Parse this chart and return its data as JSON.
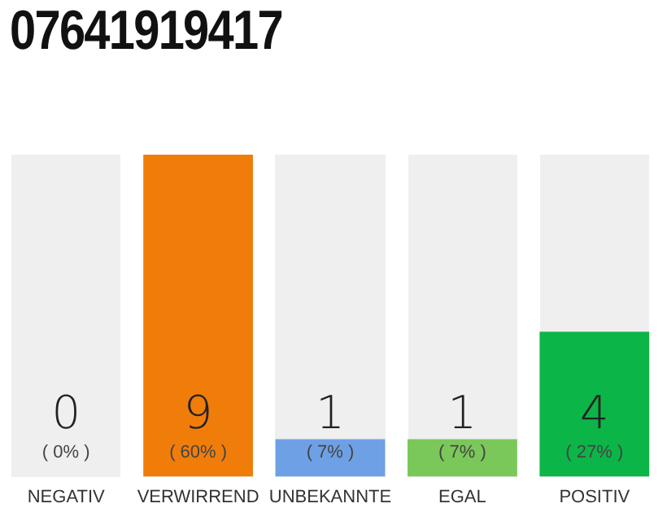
{
  "chart_data": {
    "type": "bar",
    "title": "07641919417",
    "categories": [
      "NEGATIV",
      "VERWIRREND",
      "UNBEKANNTE",
      "EGAL",
      "POSITIV"
    ],
    "values": [
      0,
      60,
      7,
      7,
      27
    ],
    "colors": [
      "#9a9a9a",
      "#f07d0a",
      "#6ea0e6",
      "#7ac85a",
      "#0cb548"
    ],
    "value_labels": [
      "( 0% )",
      "( 60% )",
      "( 7% )",
      "( 7% )",
      "( 27% )"
    ],
    "annotations": [
      "0",
      "9",
      "1",
      "1",
      "4"
    ],
    "grid": false,
    "legend": false
  }
}
